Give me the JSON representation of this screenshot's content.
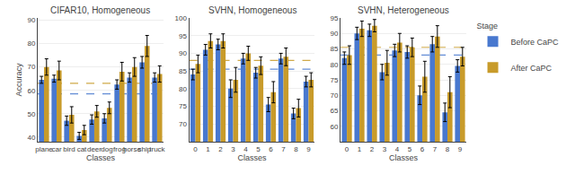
{
  "chart_data": [
    {
      "type": "bar",
      "title": "CIFAR10, Homogeneous",
      "xlabel": "Classes",
      "ylabel": "Accuracy",
      "categories": [
        "plane",
        "car",
        "bird",
        "cat",
        "deer",
        "dog",
        "frog",
        "horse",
        "ship",
        "truck"
      ],
      "series": [
        {
          "name": "Before CaPC",
          "color": "#4878CF",
          "values": [
            64.5,
            65.0,
            47.0,
            40.5,
            47.5,
            48.0,
            62.5,
            65.5,
            72.0,
            65.5
          ],
          "errors": [
            1.5,
            1.5,
            2.0,
            1.5,
            2.0,
            2.0,
            2.0,
            2.0,
            2.5,
            2.0
          ],
          "mean": 58.5
        },
        {
          "name": "After CaPC",
          "color": "#C89B2A",
          "values": [
            70.0,
            68.5,
            49.5,
            43.0,
            51.0,
            52.5,
            68.0,
            70.0,
            79.0,
            67.0
          ],
          "errors": [
            3.5,
            4.0,
            3.5,
            2.0,
            2.5,
            2.5,
            4.0,
            4.0,
            4.5,
            3.5
          ],
          "mean": 63.0
        }
      ],
      "ylim": [
        38,
        91
      ],
      "yticks": [
        40,
        50,
        60,
        70,
        80,
        90
      ],
      "grid": true,
      "legend": "upper right",
      "legend_title": "Stage"
    },
    {
      "type": "bar",
      "title": "SVHN, Homogeneous",
      "xlabel": "Classes",
      "categories": [
        "0",
        "1",
        "2",
        "3",
        "4",
        "5",
        "6",
        "7",
        "8",
        "9"
      ],
      "series": [
        {
          "name": "Before CaPC",
          "color": "#4878CF",
          "values": [
            84.0,
            91.0,
            92.5,
            80.0,
            88.5,
            84.5,
            75.5,
            88.5,
            73.0,
            82.0
          ],
          "errors": [
            1.5,
            1.5,
            1.5,
            2.5,
            1.5,
            1.5,
            2.0,
            1.5,
            1.5,
            1.5
          ],
          "mean": 85.5
        },
        {
          "name": "After CaPC",
          "color": "#C89B2A",
          "values": [
            87.0,
            93.5,
            93.5,
            82.5,
            90.0,
            86.5,
            79.0,
            89.0,
            74.5,
            82.5
          ],
          "errors": [
            2.5,
            2.0,
            2.0,
            3.5,
            2.0,
            2.5,
            3.0,
            2.5,
            2.5,
            2.0
          ],
          "mean": 88.0
        }
      ],
      "ylim": [
        65,
        100
      ],
      "yticks": [
        70,
        75,
        80,
        85,
        90,
        95,
        100
      ],
      "grid": true
    },
    {
      "type": "bar",
      "title": "SVHN, Heterogeneous",
      "xlabel": "Classes",
      "categories": [
        "0",
        "1",
        "2",
        "3",
        "4",
        "5",
        "6",
        "7",
        "8",
        "9"
      ],
      "series": [
        {
          "name": "Before CaPC",
          "color": "#4878CF",
          "values": [
            82.0,
            90.0,
            91.0,
            77.5,
            84.5,
            84.0,
            70.0,
            86.5,
            64.5,
            79.5
          ],
          "errors": [
            2.0,
            2.0,
            2.0,
            2.5,
            2.0,
            2.0,
            3.0,
            2.5,
            3.0,
            2.0
          ],
          "mean": 83.0
        },
        {
          "name": "After CaPC",
          "color": "#C89B2A",
          "values": [
            83.0,
            91.5,
            92.5,
            80.5,
            87.0,
            85.5,
            76.0,
            89.0,
            71.0,
            82.5
          ],
          "errors": [
            3.0,
            2.5,
            2.0,
            4.0,
            3.0,
            3.0,
            5.0,
            3.5,
            5.0,
            3.0
          ],
          "mean": 85.5
        }
      ],
      "ylim": [
        55,
        95
      ],
      "yticks": [
        60,
        65,
        70,
        75,
        80,
        85,
        90,
        95
      ],
      "grid": true
    }
  ]
}
